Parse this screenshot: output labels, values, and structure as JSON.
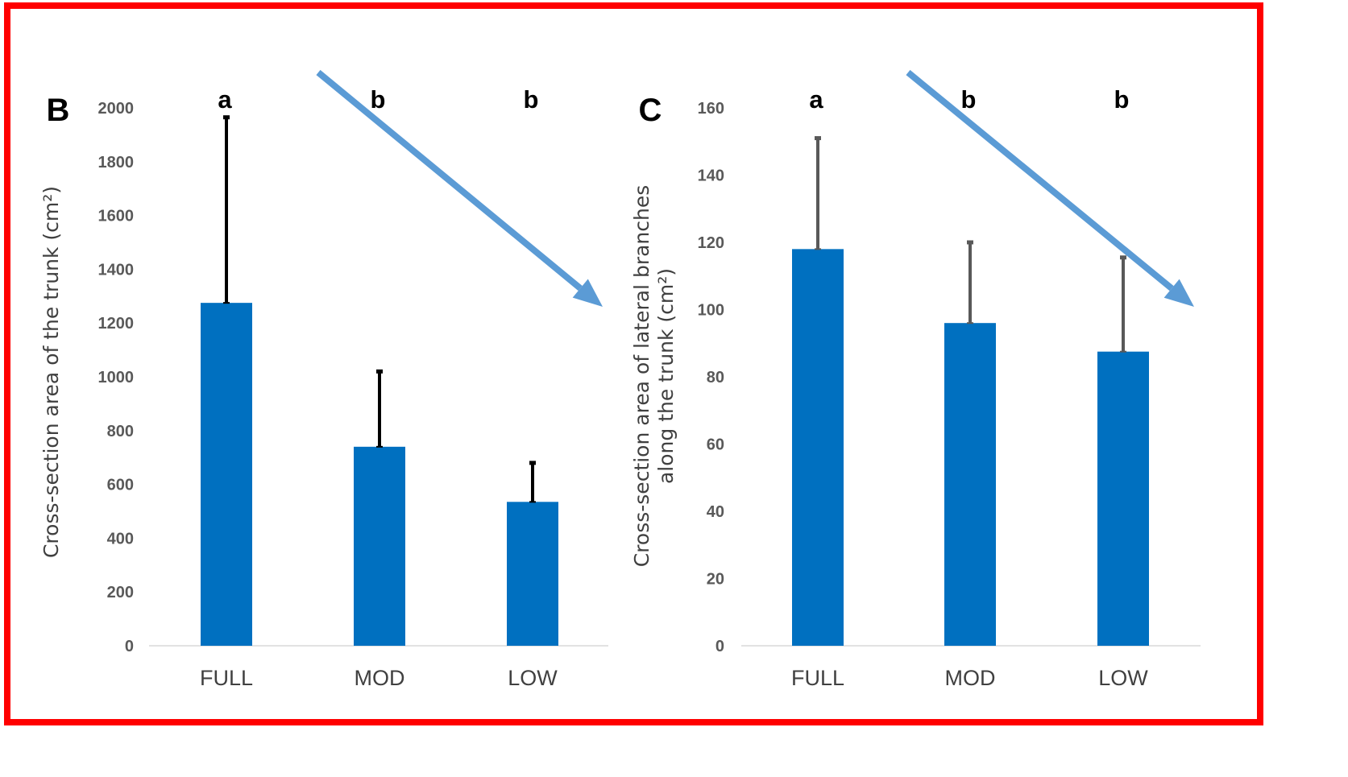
{
  "colors": {
    "frame": "#ff0000",
    "bar": "#0070c0",
    "arrow": "#5b9bd5",
    "error_bar_B": "#000000",
    "error_bar_C": "#595959"
  },
  "chart_data": [
    {
      "type": "bar",
      "panel_label": "B",
      "categories": [
        "FULL",
        "MOD",
        "LOW"
      ],
      "values": [
        1275,
        740,
        535
      ],
      "error_upper": [
        1965,
        1020,
        680
      ],
      "significance": [
        "a",
        "b",
        "b"
      ],
      "ylabel": "Cross-section area of the trunk (cm²)",
      "ylabel_lines": [
        "Cross-section area of the trunk (cm²)"
      ],
      "ylim": [
        0,
        2000
      ],
      "yticks": [
        "0",
        "200",
        "400",
        "600",
        "800",
        "1000",
        "1200",
        "1400",
        "1600",
        "1800",
        "2000"
      ],
      "trend_arrow": "decreasing",
      "grid": false
    },
    {
      "type": "bar",
      "panel_label": "C",
      "categories": [
        "FULL",
        "MOD",
        "LOW"
      ],
      "values": [
        118,
        96,
        87.5
      ],
      "error_upper": [
        151,
        120,
        115.5
      ],
      "significance": [
        "a",
        "b",
        "b"
      ],
      "ylabel": "Cross-section area of lateral branches along the trunk (cm²)",
      "ylabel_lines": [
        "Cross-section area of lateral branches",
        "along the trunk (cm²)"
      ],
      "ylim": [
        0,
        160
      ],
      "yticks": [
        "0",
        "20",
        "40",
        "60",
        "80",
        "100",
        "120",
        "140",
        "160"
      ],
      "trend_arrow": "decreasing",
      "grid": false
    }
  ]
}
